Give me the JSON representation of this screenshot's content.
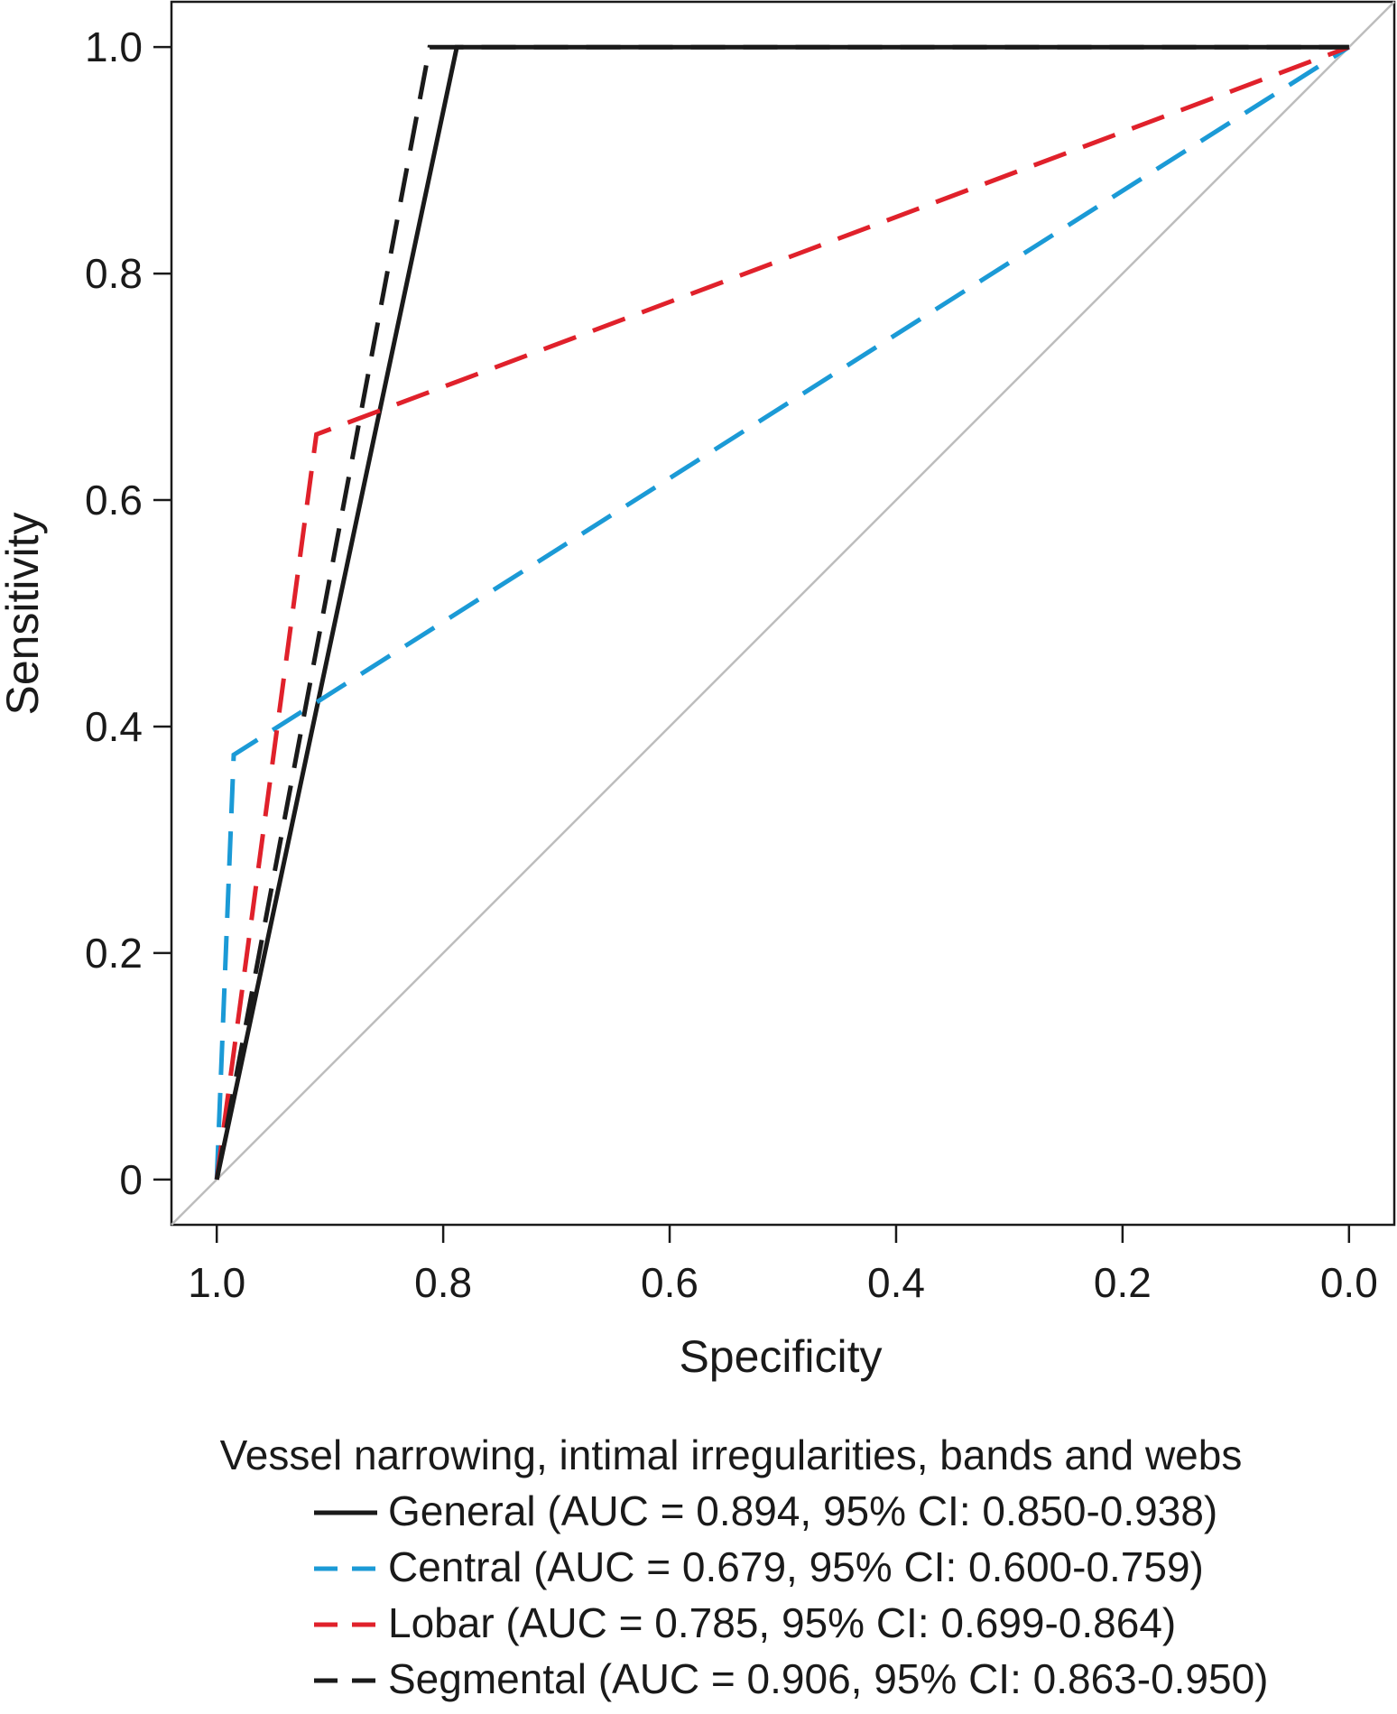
{
  "chart_data": {
    "type": "line",
    "xlabel": "Specificity",
    "ylabel": "Sensitivity",
    "xlim": [
      1.04,
      -0.04
    ],
    "ylim": [
      -0.04,
      1.04
    ],
    "x_reversed": true,
    "grid": false,
    "reference_line": {
      "from": [
        1.04,
        -0.04
      ],
      "to": [
        -0.04,
        1.04
      ],
      "color": "#bdbdbd"
    },
    "x_ticks": [
      1.0,
      0.8,
      0.6,
      0.4,
      0.2,
      0.0
    ],
    "x_tick_labels": [
      "1.0",
      "0.8",
      "0.6",
      "0.4",
      "0.2",
      "0.0"
    ],
    "y_ticks": [
      0,
      0.2,
      0.4,
      0.6,
      0.8,
      1.0
    ],
    "y_tick_labels": [
      "0",
      "0.2",
      "0.4",
      "0.6",
      "0.8",
      "1.0"
    ],
    "legend": {
      "title": "Vessel narrowing, intimal irregularities, bands and webs",
      "placement": "bottom-center"
    },
    "series": [
      {
        "name": "General (AUC = 0.894, 95% CI: 0.850-0.938)",
        "color": "#1a1a1a",
        "dash": "solid",
        "points": [
          [
            1.0,
            0.0
          ],
          [
            0.788,
            1.0
          ],
          [
            0.0,
            1.0
          ]
        ]
      },
      {
        "name": "Central (AUC = 0.679, 95% CI: 0.600-0.759)",
        "color": "#1b9ad6",
        "dash": "dashed",
        "points": [
          [
            1.0,
            0.0
          ],
          [
            0.985,
            0.375
          ],
          [
            0.0,
            1.0
          ]
        ]
      },
      {
        "name": "Lobar (AUC = 0.785, 95% CI: 0.699-0.864)",
        "color": "#e0212b",
        "dash": "dashed",
        "points": [
          [
            1.0,
            0.0
          ],
          [
            0.912,
            0.658
          ],
          [
            0.0,
            1.0
          ]
        ]
      },
      {
        "name": "Segmental (AUC = 0.906, 95% CI: 0.863-0.950)",
        "color": "#1a1a1a",
        "dash": "dashed",
        "points": [
          [
            1.0,
            0.0
          ],
          [
            0.812,
            1.0
          ],
          [
            0.0,
            1.0
          ]
        ]
      }
    ]
  }
}
